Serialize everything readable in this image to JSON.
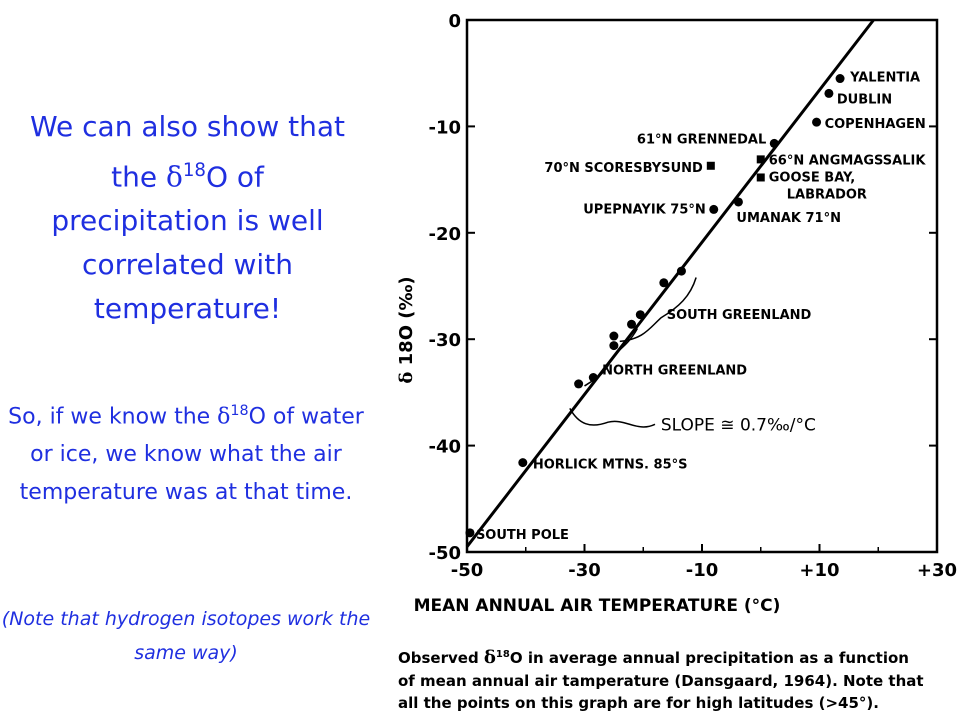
{
  "slide": {
    "headline_part1": "We can also show that the ",
    "headline_delta": "δ",
    "headline_sup": "18",
    "headline_part2": "O of precipitation is well correlated with temperature!",
    "sub_part1": "So, if we know the ",
    "sub_delta": "δ",
    "sub_sup": "18",
    "sub_part2": "O of water or ice, we know what the air temperature was at that time.",
    "note": "(Note that hydrogen isotopes work the same way)"
  },
  "caption": {
    "line1_a": "Observed ",
    "line1_delta": "δ",
    "line1_sup": "18",
    "line1_b": "O in average annual precipitation as a function",
    "line2": "of mean annual air tamperature (Dansgaard, 1964).  Note that",
    "line3": "all the points on this graph are for high latitudes (>45°)."
  },
  "chart_data": {
    "type": "scatter",
    "xlabel": "MEAN ANNUAL AIR TEMPERATURE (°C)",
    "ylabel_delta": "δ",
    "ylabel_rest": " 18O (‰)",
    "xlim": [
      -50,
      30
    ],
    "ylim": [
      -50,
      0
    ],
    "x_ticks": [
      {
        "value": -50,
        "label": "-50"
      },
      {
        "value": -30,
        "label": "-30"
      },
      {
        "value": -10,
        "label": "-10"
      },
      {
        "value": 10,
        "label": "+10"
      },
      {
        "value": 30,
        "label": "+30"
      }
    ],
    "y_ticks": [
      {
        "value": 0,
        "label": "0"
      },
      {
        "value": -10,
        "label": "-10"
      },
      {
        "value": -20,
        "label": "-20"
      },
      {
        "value": -30,
        "label": "-30"
      },
      {
        "value": -40,
        "label": "-40"
      },
      {
        "value": -50,
        "label": "-50"
      }
    ],
    "fit_line": {
      "x1": -50,
      "y1": -49.5,
      "x2": 19.2,
      "y2": 0,
      "label": "SLOPE ≅ 0.7‰/°C"
    },
    "points": [
      {
        "x": -49.5,
        "y": -48.2,
        "label": "SOUTH POLE"
      },
      {
        "x": -40.5,
        "y": -41.6,
        "label": "HORLICK MTNS. 85°S"
      },
      {
        "x": -31,
        "y": -34.2,
        "label": ""
      },
      {
        "x": -28.5,
        "y": -33.6,
        "label": ""
      },
      {
        "x": -25,
        "y": -29.7,
        "label": ""
      },
      {
        "x": -25,
        "y": -30.6,
        "label": ""
      },
      {
        "x": -22,
        "y": -28.6,
        "label": ""
      },
      {
        "x": -20.5,
        "y": -27.7,
        "label": ""
      },
      {
        "x": -16.5,
        "y": -24.7,
        "label": ""
      },
      {
        "x": -13.5,
        "y": -23.6,
        "label": ""
      },
      {
        "x": -8.5,
        "y": -13.7,
        "label": "70°N SCORESBYSUND"
      },
      {
        "x": -8,
        "y": -17.8,
        "label": "UPEPNAYIK 75°N"
      },
      {
        "x": -3.8,
        "y": -17.1,
        "label": "UMANAK 71°N"
      },
      {
        "x": 0,
        "y": -13.1,
        "label": "66°N ANGMAGSSALIK"
      },
      {
        "x": 0,
        "y": -14.8,
        "label": "GOOSE BAY, LABRADOR"
      },
      {
        "x": 2.3,
        "y": -11.6,
        "label": "61°N GRENNEDAL"
      },
      {
        "x": 9.5,
        "y": -9.6,
        "label": "COPENHAGEN"
      },
      {
        "x": 11.6,
        "y": -6.9,
        "label": "DUBLIN"
      },
      {
        "x": 13.5,
        "y": -5.5,
        "label": "YALENTIA"
      }
    ],
    "group_labels": [
      "SOUTH GREENLAND",
      "NORTH GREENLAND"
    ]
  }
}
